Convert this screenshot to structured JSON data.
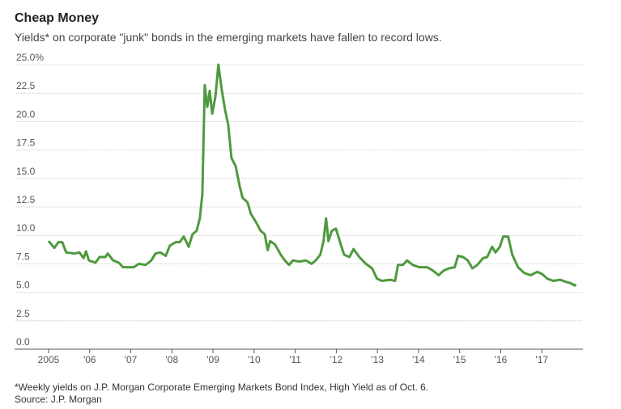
{
  "chart_data": {
    "type": "line",
    "title": "Cheap Money",
    "subtitle": "Yields* on corporate \"junk\" bonds in the emerging markets have fallen to record lows.",
    "notes": [
      "*Weekly yields on J.P. Morgan Corporate Emerging Markets Bond Index, High Yield as of Oct. 6.",
      "Source: J.P. Morgan"
    ],
    "x": [
      2005.0,
      2005.14,
      2005.24,
      2005.33,
      2005.43,
      2005.63,
      2005.75,
      2005.85,
      2005.91,
      2005.98,
      2006.14,
      2006.24,
      2006.38,
      2006.44,
      2006.57,
      2006.71,
      2006.81,
      2007.07,
      2007.2,
      2007.36,
      2007.5,
      2007.6,
      2007.72,
      2007.85,
      2007.95,
      2008.09,
      2008.19,
      2008.29,
      2008.41,
      2008.5,
      2008.6,
      2008.68,
      2008.74,
      2008.8,
      2008.86,
      2008.92,
      2008.98,
      2009.06,
      2009.13,
      2009.21,
      2009.29,
      2009.37,
      2009.45,
      2009.55,
      2009.65,
      2009.72,
      2009.84,
      2009.92,
      2010.04,
      2010.16,
      2010.26,
      2010.33,
      2010.39,
      2010.51,
      2010.65,
      2010.75,
      2010.85,
      2010.94,
      2011.1,
      2011.26,
      2011.4,
      2011.5,
      2011.61,
      2011.69,
      2011.75,
      2011.81,
      2011.89,
      2011.99,
      2012.09,
      2012.19,
      2012.32,
      2012.42,
      2012.56,
      2012.72,
      2012.87,
      2012.99,
      2013.11,
      2013.31,
      2013.43,
      2013.5,
      2013.62,
      2013.72,
      2013.86,
      2014.02,
      2014.21,
      2014.35,
      2014.49,
      2014.61,
      2014.74,
      2014.88,
      2014.96,
      2015.08,
      2015.2,
      2015.31,
      2015.43,
      2015.57,
      2015.67,
      2015.79,
      2015.87,
      2015.98,
      2016.06,
      2016.18,
      2016.28,
      2016.42,
      2016.57,
      2016.73,
      2016.89,
      2017.01,
      2017.13,
      2017.28,
      2017.44,
      2017.6,
      2017.7,
      2017.8,
      2017.83
    ],
    "series": [
      {
        "name": "Yield",
        "color": "#4f9a3f",
        "values": [
          9.5,
          8.9,
          9.4,
          9.4,
          8.5,
          8.4,
          8.5,
          8.0,
          8.6,
          7.8,
          7.6,
          8.1,
          8.1,
          8.4,
          7.8,
          7.6,
          7.2,
          7.2,
          7.5,
          7.4,
          7.8,
          8.4,
          8.5,
          8.2,
          9.1,
          9.4,
          9.4,
          9.9,
          9.0,
          10.1,
          10.4,
          11.5,
          13.6,
          23.2,
          21.3,
          22.7,
          20.7,
          22.2,
          25.0,
          22.9,
          21.1,
          19.7,
          16.8,
          16.1,
          14.3,
          13.3,
          12.9,
          11.9,
          11.2,
          10.4,
          10.1,
          8.7,
          9.5,
          9.2,
          8.3,
          7.8,
          7.4,
          7.8,
          7.7,
          7.8,
          7.5,
          7.8,
          8.3,
          9.5,
          11.5,
          9.5,
          10.4,
          10.6,
          9.4,
          8.3,
          8.1,
          8.8,
          8.1,
          7.5,
          7.1,
          6.2,
          6.0,
          6.1,
          6.0,
          7.4,
          7.4,
          7.8,
          7.4,
          7.2,
          7.2,
          6.9,
          6.5,
          6.9,
          7.1,
          7.2,
          8.2,
          8.1,
          7.8,
          7.1,
          7.4,
          8.0,
          8.1,
          9.0,
          8.5,
          9.0,
          9.9,
          9.9,
          8.3,
          7.2,
          6.7,
          6.5,
          6.8,
          6.6,
          6.2,
          6.0,
          6.1,
          5.9,
          5.8,
          5.6,
          5.7
        ]
      }
    ],
    "xlim": [
      2005,
      2018
    ],
    "xticks": [
      2005,
      {
        "value": 2006,
        "label": "'06"
      },
      {
        "value": 2007,
        "label": "'07"
      },
      {
        "value": 2008,
        "label": "'08"
      },
      {
        "value": 2009,
        "label": "'09"
      },
      {
        "value": 2010,
        "label": "'10"
      },
      {
        "value": 2011,
        "label": "'11"
      },
      {
        "value": 2012,
        "label": "'12"
      },
      {
        "value": 2013,
        "label": "'13"
      },
      {
        "value": 2014,
        "label": "'14"
      },
      {
        "value": 2015,
        "label": "'15"
      },
      {
        "value": 2016,
        "label": "'16"
      },
      {
        "value": 2017,
        "label": "'17"
      }
    ],
    "ylim": [
      0,
      25
    ],
    "yticks": [
      {
        "value": 0,
        "label": "0.0"
      },
      2.5,
      {
        "value": 5,
        "label": "5.0"
      },
      7.5,
      {
        "value": 10,
        "label": "10.0"
      },
      12.5,
      {
        "value": 15,
        "label": "15.0"
      },
      17.5,
      {
        "value": 20,
        "label": "20.0"
      },
      22.5,
      {
        "value": 25,
        "label": "25.0%"
      }
    ],
    "grid": true
  }
}
